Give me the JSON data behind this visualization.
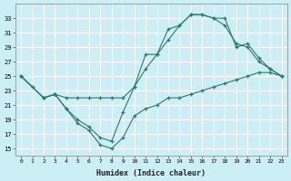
{
  "xlabel": "Humidex (Indice chaleur)",
  "background_color": "#cceef5",
  "grid_color": "#ffffff",
  "line_color": "#2a7a6f",
  "xlim": [
    -0.5,
    23.5
  ],
  "ylim": [
    14,
    35
  ],
  "yticks": [
    15,
    17,
    19,
    21,
    23,
    25,
    27,
    29,
    31,
    33
  ],
  "xticks": [
    0,
    1,
    2,
    3,
    4,
    5,
    6,
    7,
    8,
    9,
    10,
    11,
    12,
    13,
    14,
    15,
    16,
    17,
    18,
    19,
    20,
    21,
    22,
    23
  ],
  "line1_x": [
    0,
    1,
    2,
    3,
    4,
    5,
    6,
    7,
    8,
    9,
    10,
    11,
    12,
    13,
    14,
    15,
    16,
    17,
    18,
    19,
    20,
    21,
    22,
    23
  ],
  "line1_y": [
    25,
    23.5,
    22,
    22.5,
    20.5,
    18.5,
    17.5,
    15.5,
    15,
    16.5,
    19.5,
    20.5,
    21,
    22,
    22,
    22.5,
    23,
    23.5,
    24,
    24.5,
    25,
    25.5,
    25.5,
    25
  ],
  "line2_x": [
    0,
    2,
    3,
    4,
    5,
    6,
    7,
    8,
    9,
    10,
    11,
    12,
    13,
    14,
    15,
    16,
    17,
    18,
    19,
    20,
    21,
    22,
    23
  ],
  "line2_y": [
    25,
    22,
    22.5,
    20.5,
    19,
    18,
    16.5,
    16,
    20,
    23.5,
    28,
    28,
    31.5,
    32,
    33.5,
    33.5,
    33,
    33,
    29,
    29.5,
    27.5,
    26,
    25
  ],
  "line3_x": [
    0,
    2,
    3,
    4,
    5,
    6,
    7,
    8,
    9,
    10,
    11,
    12,
    13,
    14,
    15,
    16,
    17,
    18,
    19,
    20,
    21,
    22,
    23
  ],
  "line3_y": [
    25,
    22,
    22.5,
    22,
    22,
    22,
    22,
    22,
    22,
    23.5,
    26,
    28,
    30,
    32,
    33.5,
    33.5,
    33,
    32,
    29.5,
    29,
    27,
    26,
    25
  ]
}
